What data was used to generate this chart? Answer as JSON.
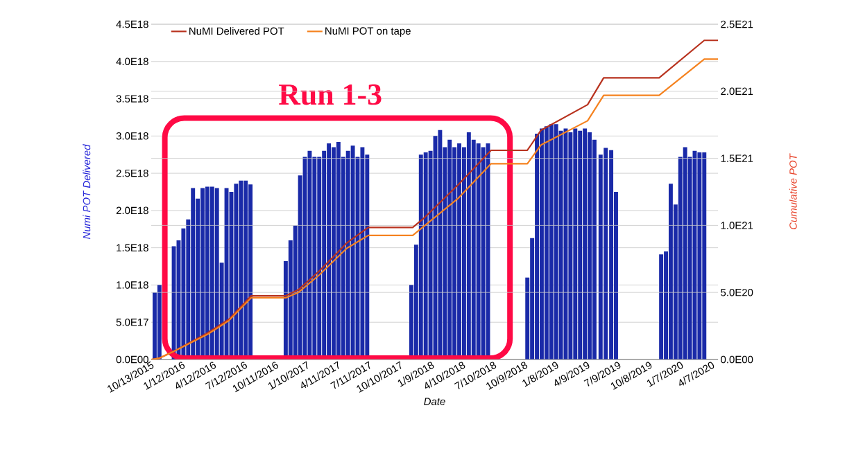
{
  "chart_data": {
    "type": "bar",
    "xlabel": "Date",
    "ylabel": "Numi POT Delivered",
    "y2label": "Cumulative POT",
    "annotations": [
      "Run 1-3"
    ],
    "xlim": [
      "2015-10-13",
      "2020-04-25"
    ],
    "xticks": [
      {
        "value": "2015-10-13",
        "label": "10/13/2015"
      },
      {
        "value": "2016-01-12",
        "label": "1/12/2016"
      },
      {
        "value": "2016-04-12",
        "label": "4/12/2016"
      },
      {
        "value": "2016-07-12",
        "label": "7/12/2016"
      },
      {
        "value": "2016-10-11",
        "label": "10/11/2016"
      },
      {
        "value": "2017-01-10",
        "label": "1/10/2017"
      },
      {
        "value": "2017-04-11",
        "label": "4/11/2017"
      },
      {
        "value": "2017-07-11",
        "label": "7/11/2017"
      },
      {
        "value": "2017-10-10",
        "label": "10/10/2017"
      },
      {
        "value": "2018-01-09",
        "label": "1/9/2018"
      },
      {
        "value": "2018-04-10",
        "label": "4/10/2018"
      },
      {
        "value": "2018-07-10",
        "label": "7/10/2018"
      },
      {
        "value": "2018-10-09",
        "label": "10/9/2018"
      },
      {
        "value": "2019-01-08",
        "label": "1/8/2019"
      },
      {
        "value": "2019-04-09",
        "label": "4/9/2019"
      },
      {
        "value": "2019-07-09",
        "label": "7/9/2019"
      },
      {
        "value": "2019-10-08",
        "label": "10/8/2019"
      },
      {
        "value": "2020-01-07",
        "label": "1/7/2020"
      },
      {
        "value": "2020-04-07",
        "label": "4/7/2020"
      }
    ],
    "ylim": [
      0,
      4.5e+18
    ],
    "yticks": [
      {
        "value": 0,
        "label": "0.0E00"
      },
      {
        "value": 5e+17,
        "label": "5.0E17"
      },
      {
        "value": 1e+18,
        "label": "1.0E18"
      },
      {
        "value": 1.5e+18,
        "label": "1.5E18"
      },
      {
        "value": 2e+18,
        "label": "2.0E18"
      },
      {
        "value": 2.5e+18,
        "label": "2.5E18"
      },
      {
        "value": 3e+18,
        "label": "3.0E18"
      },
      {
        "value": 3.5e+18,
        "label": "3.5E18"
      },
      {
        "value": 4e+18,
        "label": "4.0E18"
      },
      {
        "value": 4.5e+18,
        "label": "4.5E18"
      }
    ],
    "y2lim": [
      0,
      2.5e+21
    ],
    "y2ticks": [
      {
        "value": 0,
        "label": "0.0E00"
      },
      {
        "value": 5e+20,
        "label": "5.0E20"
      },
      {
        "value": 1e+21,
        "label": "1.0E21"
      },
      {
        "value": 1.5e+21,
        "label": "1.5E21"
      },
      {
        "value": 2e+21,
        "label": "2.0E21"
      },
      {
        "value": 2.5e+21,
        "label": "2.5E21"
      }
    ],
    "grid": "y",
    "legend": "top left",
    "series": [
      {
        "color": "#1a2aa8",
        "x": [
          "2015-10-23",
          "2015-11-06",
          "2015-11-20",
          "2015-12-04",
          "2015-12-18",
          "2016-01-01",
          "2016-01-15",
          "2016-01-29",
          "2016-02-12",
          "2016-02-26",
          "2016-03-11",
          "2016-03-25",
          "2016-04-08",
          "2016-04-22",
          "2016-05-06",
          "2016-05-20",
          "2016-06-03",
          "2016-06-17",
          "2016-07-01",
          "2016-07-15",
          "2016-07-29",
          "2016-11-09",
          "2016-11-23",
          "2016-12-07",
          "2016-12-21",
          "2017-01-04",
          "2017-01-18",
          "2017-02-01",
          "2017-02-15",
          "2017-03-01",
          "2017-03-15",
          "2017-03-29",
          "2017-04-12",
          "2017-04-26",
          "2017-05-10",
          "2017-05-24",
          "2017-06-07",
          "2017-06-21",
          "2017-07-05",
          "2017-11-11",
          "2017-11-25",
          "2017-12-09",
          "2017-12-23",
          "2018-01-06",
          "2018-01-20",
          "2018-02-03",
          "2018-02-17",
          "2018-03-03",
          "2018-03-17",
          "2018-03-31",
          "2018-04-14",
          "2018-04-28",
          "2018-05-12",
          "2018-05-26",
          "2018-06-09",
          "2018-06-23",
          "2018-10-16",
          "2018-10-30",
          "2018-11-13",
          "2018-11-27",
          "2018-12-11",
          "2018-12-25",
          "2019-01-08",
          "2019-01-22",
          "2019-02-05",
          "2019-02-19",
          "2019-03-05",
          "2019-03-19",
          "2019-04-02",
          "2019-04-16",
          "2019-04-30",
          "2019-05-18",
          "2019-06-02",
          "2019-06-18",
          "2019-07-02",
          "2019-11-11",
          "2019-11-25",
          "2019-12-09",
          "2019-12-23",
          "2020-01-06",
          "2020-01-20",
          "2020-02-03",
          "2020-02-17",
          "2020-03-02",
          "2020-03-16"
        ],
        "values": [
          9e+17,
          1e+18,
          null,
          null,
          1.52e+18,
          1.6e+18,
          1.76e+18,
          1.88e+18,
          2.3e+18,
          2.16e+18,
          2.3e+18,
          2.32e+18,
          2.32e+18,
          2.3e+18,
          1.3e+18,
          2.3e+18,
          2.25e+18,
          2.36e+18,
          2.4e+18,
          2.4e+18,
          2.35e+18,
          1.32e+18,
          1.6e+18,
          1.8e+18,
          2.47e+18,
          2.72e+18,
          2.8e+18,
          2.72e+18,
          2.72e+18,
          2.8e+18,
          2.9e+18,
          2.85e+18,
          2.92e+18,
          2.72e+18,
          2.8e+18,
          2.87e+18,
          2.72e+18,
          2.85e+18,
          2.75e+18,
          1e+18,
          1.54e+18,
          2.75e+18,
          2.78e+18,
          2.8e+18,
          3e+18,
          3.08e+18,
          2.85e+18,
          2.95e+18,
          2.85e+18,
          2.9e+18,
          2.85e+18,
          3.05e+18,
          2.95e+18,
          2.9e+18,
          2.85e+18,
          2.9e+18,
          1.1e+18,
          1.63e+18,
          3.03e+18,
          3.1e+18,
          3.13e+18,
          3.16e+18,
          3.16e+18,
          3.07e+18,
          3.1e+18,
          3.05e+18,
          3.1e+18,
          3.07e+18,
          3.1e+18,
          3.05e+18,
          2.95e+18,
          2.75e+18,
          2.84e+18,
          2.81e+18,
          2.25e+18,
          1.41e+18,
          1.45e+18,
          2.36e+18,
          2.08e+18,
          2.72e+18,
          2.85e+18,
          2.72e+18,
          2.8e+18,
          2.78e+18,
          2.78e+18
        ]
      },
      {
        "type": "line",
        "axis": "y2",
        "name": "NuMI Delivered POT",
        "color": "#b8321e",
        "x": [
          "2015-10-13",
          "2015-11-06",
          "2015-12-17",
          "2016-03-27",
          "2016-05-27",
          "2016-07-31",
          "2016-11-09",
          "2016-12-16",
          "2017-02-15",
          "2017-05-07",
          "2017-07-08",
          "2017-11-15",
          "2017-12-16",
          "2018-03-27",
          "2018-07-02",
          "2018-10-16",
          "2018-11-25",
          "2019-04-10",
          "2019-05-27",
          "2019-11-05",
          "2020-03-16",
          "2020-04-25"
        ],
        "values": [
          0,
          1e+19,
          6e+19,
          2e+20,
          3e+20,
          4.75e+20,
          4.75e+20,
          5.2e+20,
          6.6e+20,
          8.7e+20,
          9.85e+20,
          9.85e+20,
          1.05e+21,
          1.3e+21,
          1.56e+21,
          1.56e+21,
          1.71e+21,
          1.9e+21,
          2.1e+21,
          2.1e+21,
          2.38e+21,
          2.38e+21
        ]
      },
      {
        "type": "line",
        "axis": "y2",
        "name": "NuMI POT on tape",
        "color": "#f5821f",
        "x": [
          "2015-10-13",
          "2015-11-06",
          "2015-12-17",
          "2016-03-27",
          "2016-05-27",
          "2016-07-31",
          "2016-11-09",
          "2016-12-16",
          "2017-02-15",
          "2017-05-07",
          "2017-07-08",
          "2017-11-15",
          "2017-12-16",
          "2018-03-27",
          "2018-07-02",
          "2018-10-16",
          "2018-11-25",
          "2019-04-10",
          "2019-05-27",
          "2019-11-05",
          "2020-03-16",
          "2020-04-25"
        ],
        "values": [
          0,
          1e+19,
          6e+19,
          1.9e+20,
          2.9e+20,
          4.6e+20,
          4.6e+20,
          5e+20,
          6.3e+20,
          8.3e+20,
          9.25e+20,
          9.25e+20,
          9.9e+20,
          1.2e+21,
          1.46e+21,
          1.46e+21,
          1.6e+21,
          1.78e+21,
          1.97e+21,
          1.97e+21,
          2.24e+21,
          2.24e+21
        ]
      }
    ]
  }
}
